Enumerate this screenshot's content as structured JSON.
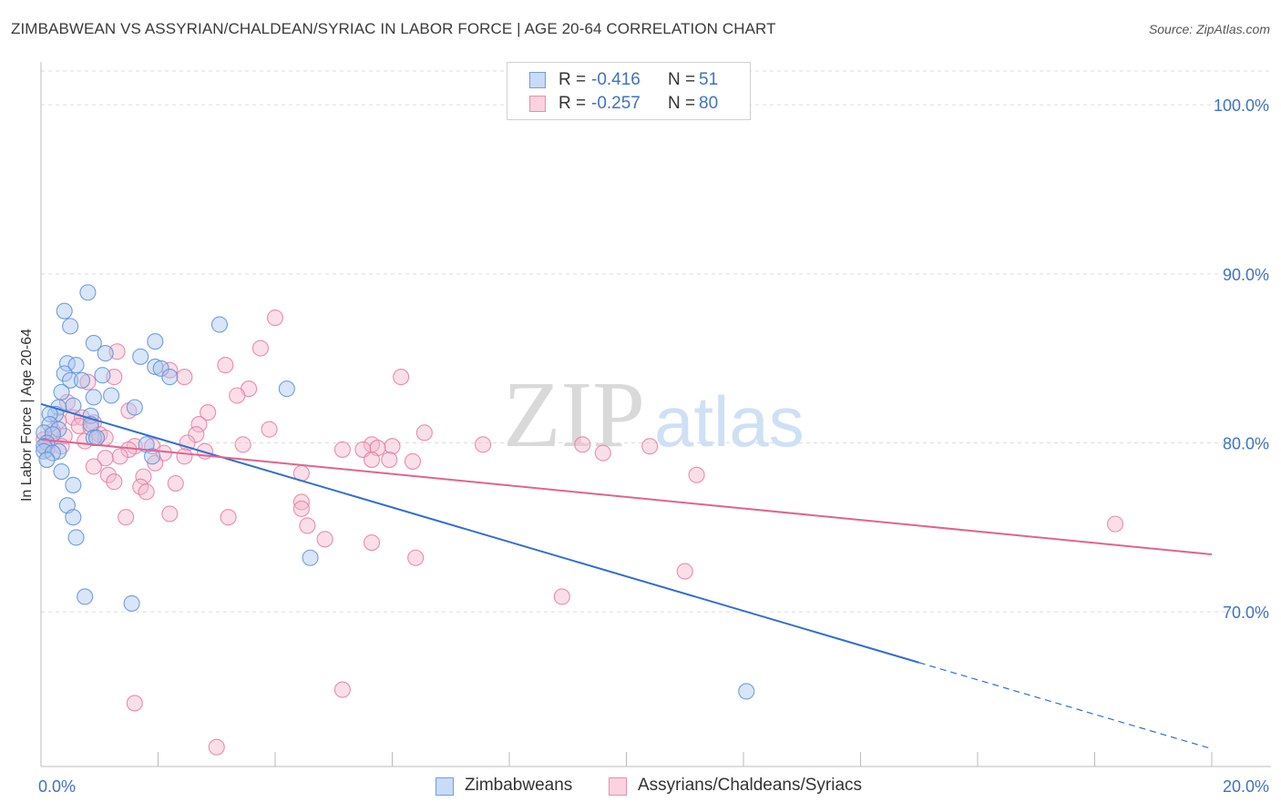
{
  "header": {
    "title": "ZIMBABWEAN VS ASSYRIAN/CHALDEAN/SYRIAC IN LABOR FORCE | AGE 20-64 CORRELATION CHART",
    "source": "Source: ZipAtlas.com"
  },
  "watermark": {
    "zip": "ZIP",
    "atlas": "atlas"
  },
  "legend": {
    "r_label": "R =",
    "n_label": "N =",
    "rows": [
      {
        "r": "-0.416",
        "n": "51",
        "color": "#aac6ef"
      },
      {
        "r": "-0.257",
        "n": "80",
        "color": "#f5b8cb"
      }
    ]
  },
  "bottom_legend": [
    {
      "label": "Zimbabweans",
      "color": "#aac6ef"
    },
    {
      "label": "Assyrians/Chaldeans/Syriacs",
      "color": "#f5b8cb"
    }
  ],
  "chart_data": {
    "type": "scatter",
    "title": "ZIMBABWEAN VS ASSYRIAN/CHALDEAN/SYRIAC IN LABOR FORCE | AGE 20-64 CORRELATION CHART",
    "xlabel": "",
    "ylabel": "In Labor Force | Age 20-64",
    "xlim": [
      0,
      20
    ],
    "ylim": [
      61.5,
      102
    ],
    "x_tick_labels": [
      {
        "value": 0,
        "label": "0.0%"
      },
      {
        "value": 20,
        "label": "20.0%"
      }
    ],
    "y_tick_labels": [
      {
        "value": 100,
        "label": "100.0%"
      },
      {
        "value": 90,
        "label": "90.0%"
      },
      {
        "value": 80,
        "label": "80.0%"
      },
      {
        "value": 70,
        "label": "70.0%"
      }
    ],
    "x_minor_ticks": [
      0,
      2,
      4,
      6,
      8,
      10,
      12,
      14,
      16,
      18,
      20
    ],
    "series": [
      {
        "name": "Zimbabweans",
        "color": "#5b8fd8",
        "fill": "#aac6ef",
        "line_color": "#2f6fd1",
        "trend": {
          "x0": 0,
          "y0": 82.3,
          "x1": 15.0,
          "y1": 67.0,
          "dash_to_x": 20,
          "dash_to_y": 61.9
        },
        "points": [
          [
            0.8,
            88.9
          ],
          [
            0.4,
            87.8
          ],
          [
            0.5,
            86.9
          ],
          [
            3.05,
            87.0
          ],
          [
            1.95,
            86.0
          ],
          [
            0.9,
            85.9
          ],
          [
            1.1,
            85.3
          ],
          [
            1.7,
            85.1
          ],
          [
            0.45,
            84.7
          ],
          [
            0.6,
            84.6
          ],
          [
            1.95,
            84.5
          ],
          [
            2.05,
            84.4
          ],
          [
            0.4,
            84.1
          ],
          [
            1.05,
            84.0
          ],
          [
            2.2,
            83.9
          ],
          [
            0.5,
            83.7
          ],
          [
            0.7,
            83.7
          ],
          [
            4.2,
            83.2
          ],
          [
            0.35,
            83.0
          ],
          [
            1.2,
            82.8
          ],
          [
            0.9,
            82.7
          ],
          [
            0.55,
            82.2
          ],
          [
            0.3,
            82.1
          ],
          [
            1.6,
            82.1
          ],
          [
            0.85,
            81.6
          ],
          [
            0.25,
            81.7
          ],
          [
            0.15,
            81.7
          ],
          [
            0.15,
            81.1
          ],
          [
            0.85,
            81.1
          ],
          [
            0.3,
            80.8
          ],
          [
            0.05,
            80.6
          ],
          [
            0.2,
            80.5
          ],
          [
            0.9,
            80.3
          ],
          [
            0.95,
            80.3
          ],
          [
            0.1,
            80.0
          ],
          [
            0.05,
            79.8
          ],
          [
            1.8,
            79.9
          ],
          [
            0.05,
            79.5
          ],
          [
            0.3,
            79.5
          ],
          [
            0.2,
            79.4
          ],
          [
            1.9,
            79.2
          ],
          [
            0.1,
            79.0
          ],
          [
            0.35,
            78.3
          ],
          [
            0.55,
            77.5
          ],
          [
            0.45,
            76.3
          ],
          [
            0.55,
            75.6
          ],
          [
            0.6,
            74.4
          ],
          [
            4.6,
            73.2
          ],
          [
            0.75,
            70.9
          ],
          [
            1.55,
            70.5
          ],
          [
            12.05,
            65.3
          ]
        ]
      },
      {
        "name": "Assyrians/Chaldeans/Syriacs",
        "color": "#e87aa0",
        "fill": "#f5b8cb",
        "line_color": "#e0648f",
        "trend": {
          "x0": 0,
          "y0": 80.2,
          "x1": 20,
          "y1": 73.4
        },
        "points": [
          [
            4.0,
            87.4
          ],
          [
            3.75,
            85.6
          ],
          [
            1.3,
            85.4
          ],
          [
            3.15,
            84.6
          ],
          [
            2.2,
            84.3
          ],
          [
            6.15,
            83.9
          ],
          [
            1.25,
            83.9
          ],
          [
            2.45,
            83.9
          ],
          [
            0.8,
            83.6
          ],
          [
            3.55,
            83.2
          ],
          [
            3.35,
            82.8
          ],
          [
            0.45,
            82.4
          ],
          [
            1.5,
            81.9
          ],
          [
            2.85,
            81.8
          ],
          [
            0.55,
            81.5
          ],
          [
            0.7,
            81.5
          ],
          [
            0.3,
            81.3
          ],
          [
            0.9,
            81.2
          ],
          [
            0.65,
            81.0
          ],
          [
            2.7,
            81.1
          ],
          [
            0.85,
            80.9
          ],
          [
            3.9,
            80.8
          ],
          [
            6.55,
            80.6
          ],
          [
            2.65,
            80.5
          ],
          [
            1.0,
            80.5
          ],
          [
            0.4,
            80.4
          ],
          [
            1.1,
            80.3
          ],
          [
            0.75,
            80.1
          ],
          [
            0.15,
            80.1
          ],
          [
            2.5,
            80.0
          ],
          [
            3.45,
            79.9
          ],
          [
            1.6,
            79.8
          ],
          [
            1.9,
            79.8
          ],
          [
            7.55,
            79.9
          ],
          [
            5.65,
            79.9
          ],
          [
            6.0,
            79.8
          ],
          [
            5.75,
            79.7
          ],
          [
            9.25,
            79.9
          ],
          [
            10.4,
            79.8
          ],
          [
            5.15,
            79.6
          ],
          [
            5.5,
            79.6
          ],
          [
            1.5,
            79.6
          ],
          [
            2.1,
            79.4
          ],
          [
            2.8,
            79.5
          ],
          [
            9.6,
            79.4
          ],
          [
            1.35,
            79.2
          ],
          [
            1.1,
            79.1
          ],
          [
            2.45,
            79.2
          ],
          [
            5.65,
            79.0
          ],
          [
            5.95,
            79.0
          ],
          [
            6.35,
            78.9
          ],
          [
            1.95,
            78.8
          ],
          [
            0.9,
            78.6
          ],
          [
            4.45,
            78.2
          ],
          [
            11.2,
            78.1
          ],
          [
            1.15,
            78.1
          ],
          [
            1.75,
            78.0
          ],
          [
            1.25,
            77.7
          ],
          [
            2.3,
            77.6
          ],
          [
            1.7,
            77.4
          ],
          [
            1.8,
            77.1
          ],
          [
            4.45,
            76.5
          ],
          [
            4.45,
            76.1
          ],
          [
            2.2,
            75.8
          ],
          [
            1.45,
            75.6
          ],
          [
            3.2,
            75.6
          ],
          [
            4.55,
            75.1
          ],
          [
            18.35,
            75.2
          ],
          [
            4.85,
            74.3
          ],
          [
            5.65,
            74.1
          ],
          [
            6.4,
            73.2
          ],
          [
            11.0,
            72.4
          ],
          [
            8.9,
            70.9
          ],
          [
            5.15,
            65.4
          ],
          [
            1.6,
            64.6
          ],
          [
            3.0,
            62.0
          ],
          [
            0.05,
            80.2
          ],
          [
            0.2,
            80.7
          ],
          [
            0.35,
            79.8
          ],
          [
            0.1,
            79.6
          ]
        ]
      }
    ]
  }
}
